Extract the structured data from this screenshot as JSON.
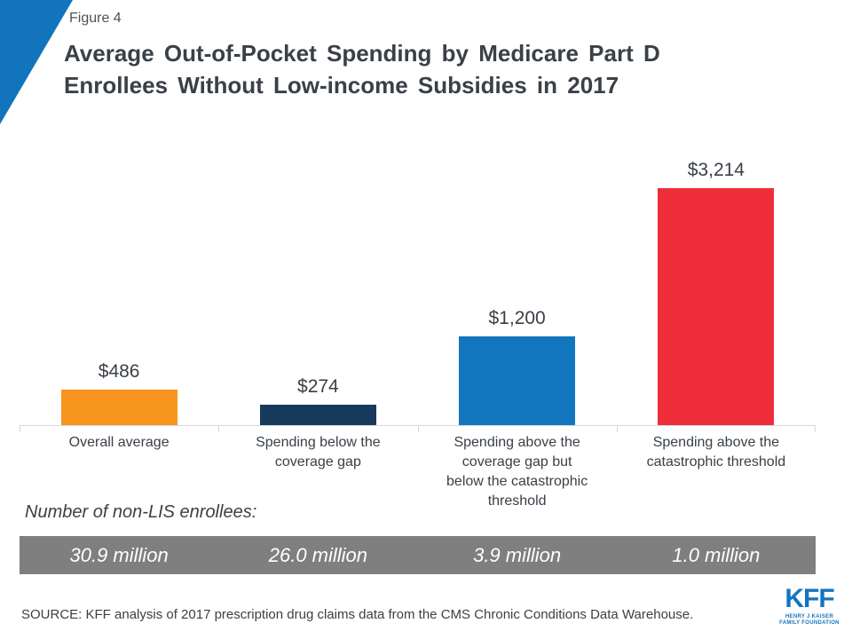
{
  "figure_label": "Figure 4",
  "header": {
    "title": "Average Out-of-Pocket Spending by Medicare Part D Enrollees Without Low-income Subsidies in 2017",
    "title_lines": [
      "Average Out-of-Pocket Spending by Medicare Part D",
      "Enrollees Without Low-income Subsidies in 2017"
    ]
  },
  "chart_data": {
    "type": "bar",
    "title": "Average Out-of-Pocket Spending by Medicare Part D Enrollees Without Low-income Subsidies in 2017",
    "categories": [
      "Overall average",
      "Spending below the coverage gap",
      "Spending above the coverage gap but below the catastrophic threshold",
      "Spending above the catastrophic threshold"
    ],
    "category_lines": [
      [
        "Overall average"
      ],
      [
        "Spending below the",
        "coverage gap"
      ],
      [
        "Spending above the",
        "coverage gap but",
        "below the catastrophic",
        "threshold"
      ],
      [
        "Spending above the",
        "catastrophic threshold"
      ]
    ],
    "values": [
      486,
      274,
      1200,
      3214
    ],
    "value_labels": [
      "$486",
      "$274",
      "$1,200",
      "$3,214"
    ],
    "colors": [
      "#F7941D",
      "#17395C",
      "#1276BE",
      "#EE2D38"
    ],
    "xlabel": "",
    "ylabel": "",
    "ylim": [
      0,
      3214
    ],
    "grid": false,
    "legend": false,
    "data_labels_position": "above-bar"
  },
  "enrollees": {
    "caption": "Number of non-LIS enrollees:",
    "values": [
      "30.9 million",
      "26.0 million",
      "3.9 million",
      "1.0 million"
    ],
    "band_color": "#7F7F7F"
  },
  "source": "SOURCE: KFF analysis of 2017 prescription drug claims data from the CMS Chronic Conditions Data Warehouse.",
  "logo": {
    "text": "KFF",
    "subtext_lines": [
      "HENRY J KAISER",
      "FAMILY FOUNDATION"
    ]
  },
  "colors": {
    "accent_blue": "#1374BE",
    "text_dark": "#394048",
    "axis_gray": "#D8D8D8"
  }
}
